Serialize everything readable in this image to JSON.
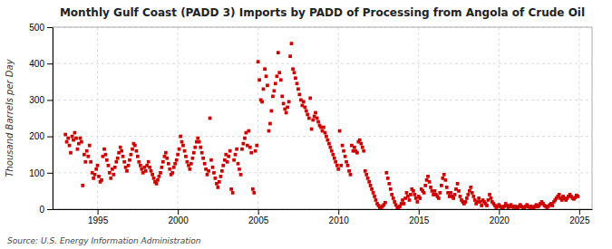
{
  "chart_data": {
    "type": "scatter",
    "title": "Monthly Gulf Coast (PADD 3) Imports by PADD of Processing from Angola of Crude Oil",
    "y_label": "Thousand Barrels per Day",
    "annotations": [
      "Source: U.S. Energy Information Administration"
    ],
    "color": "#cc0000",
    "marker": "square",
    "grid": true,
    "xlim": [
      1992.2,
      2025.8
    ],
    "ylim": [
      0,
      500
    ],
    "xticks": [
      1995,
      2000,
      2005,
      2010,
      2015,
      2020,
      2025
    ],
    "yticks": [
      0,
      100,
      200,
      300,
      400,
      500
    ],
    "x": [
      1993.0,
      1993.08,
      1993.17,
      1993.25,
      1993.33,
      1993.42,
      1993.5,
      1993.58,
      1993.67,
      1993.75,
      1993.83,
      1993.92,
      1994.0,
      1994.08,
      1994.17,
      1994.25,
      1994.33,
      1994.42,
      1994.5,
      1994.58,
      1994.67,
      1994.75,
      1994.83,
      1994.92,
      1995.0,
      1995.08,
      1995.17,
      1995.25,
      1995.33,
      1995.42,
      1995.5,
      1995.58,
      1995.67,
      1995.75,
      1995.83,
      1995.92,
      1996.0,
      1996.08,
      1996.17,
      1996.25,
      1996.33,
      1996.42,
      1996.5,
      1996.58,
      1996.67,
      1996.75,
      1996.83,
      1996.92,
      1997.0,
      1997.08,
      1997.17,
      1997.25,
      1997.33,
      1997.42,
      1997.5,
      1997.58,
      1997.67,
      1997.75,
      1997.83,
      1997.92,
      1998.0,
      1998.08,
      1998.17,
      1998.25,
      1998.33,
      1998.42,
      1998.5,
      1998.58,
      1998.67,
      1998.75,
      1998.83,
      1998.92,
      1999.0,
      1999.08,
      1999.17,
      1999.25,
      1999.33,
      1999.42,
      1999.5,
      1999.58,
      1999.67,
      1999.75,
      1999.83,
      1999.92,
      2000.0,
      2000.08,
      2000.17,
      2000.25,
      2000.33,
      2000.42,
      2000.5,
      2000.58,
      2000.67,
      2000.75,
      2000.83,
      2000.92,
      2001.0,
      2001.08,
      2001.17,
      2001.25,
      2001.33,
      2001.42,
      2001.5,
      2001.58,
      2001.67,
      2001.75,
      2001.83,
      2001.92,
      2002.0,
      2002.08,
      2002.17,
      2002.25,
      2002.33,
      2002.42,
      2002.5,
      2002.58,
      2002.67,
      2002.75,
      2002.83,
      2002.92,
      2003.0,
      2003.08,
      2003.17,
      2003.25,
      2003.33,
      2003.42,
      2003.5,
      2003.58,
      2003.67,
      2003.75,
      2003.83,
      2003.92,
      2004.0,
      2004.08,
      2004.17,
      2004.25,
      2004.33,
      2004.42,
      2004.5,
      2004.58,
      2004.67,
      2004.75,
      2004.83,
      2004.92,
      2005.0,
      2005.08,
      2005.17,
      2005.25,
      2005.33,
      2005.42,
      2005.5,
      2005.58,
      2005.67,
      2005.75,
      2005.83,
      2005.92,
      2006.0,
      2006.08,
      2006.17,
      2006.25,
      2006.33,
      2006.42,
      2006.5,
      2006.58,
      2006.67,
      2006.75,
      2006.83,
      2006.92,
      2007.0,
      2007.08,
      2007.17,
      2007.25,
      2007.33,
      2007.42,
      2007.5,
      2007.58,
      2007.67,
      2007.75,
      2007.83,
      2007.92,
      2008.0,
      2008.08,
      2008.17,
      2008.25,
      2008.33,
      2008.42,
      2008.5,
      2008.58,
      2008.67,
      2008.75,
      2008.83,
      2008.92,
      2009.0,
      2009.08,
      2009.17,
      2009.25,
      2009.33,
      2009.42,
      2009.5,
      2009.58,
      2009.67,
      2009.75,
      2009.83,
      2009.92,
      2010.0,
      2010.08,
      2010.17,
      2010.25,
      2010.33,
      2010.42,
      2010.5,
      2010.58,
      2010.67,
      2010.75,
      2010.83,
      2010.92,
      2011.0,
      2011.08,
      2011.17,
      2011.25,
      2011.33,
      2011.42,
      2011.5,
      2011.58,
      2011.67,
      2011.75,
      2011.83,
      2011.92,
      2012.0,
      2012.08,
      2012.17,
      2012.25,
      2012.33,
      2012.42,
      2012.5,
      2012.58,
      2012.67,
      2012.75,
      2012.83,
      2012.92,
      2013.0,
      2013.08,
      2013.17,
      2013.25,
      2013.33,
      2013.42,
      2013.5,
      2013.58,
      2013.67,
      2013.75,
      2013.83,
      2013.92,
      2014.0,
      2014.08,
      2014.17,
      2014.25,
      2014.33,
      2014.42,
      2014.5,
      2014.58,
      2014.67,
      2014.75,
      2014.83,
      2014.92,
      2015.0,
      2015.08,
      2015.17,
      2015.25,
      2015.33,
      2015.42,
      2015.5,
      2015.58,
      2015.67,
      2015.75,
      2015.83,
      2015.92,
      2016.0,
      2016.08,
      2016.17,
      2016.25,
      2016.33,
      2016.42,
      2016.5,
      2016.58,
      2016.67,
      2016.75,
      2016.83,
      2016.92,
      2017.0,
      2017.08,
      2017.17,
      2017.25,
      2017.33,
      2017.42,
      2017.5,
      2017.58,
      2017.67,
      2017.75,
      2017.83,
      2017.92,
      2018.0,
      2018.08,
      2018.17,
      2018.25,
      2018.33,
      2018.42,
      2018.5,
      2018.58,
      2018.67,
      2018.75,
      2018.83,
      2018.92,
      2019.0,
      2019.08,
      2019.17,
      2019.25,
      2019.33,
      2019.42,
      2019.5,
      2019.58,
      2019.67,
      2019.75,
      2019.83,
      2019.92,
      2020.0,
      2020.08,
      2020.17,
      2020.25,
      2020.33,
      2020.42,
      2020.5,
      2020.58,
      2020.67,
      2020.75,
      2020.83,
      2020.92,
      2021.0,
      2021.08,
      2021.17,
      2021.25,
      2021.33,
      2021.42,
      2021.5,
      2021.58,
      2021.67,
      2021.75,
      2021.83,
      2021.92,
      2022.0,
      2022.08,
      2022.17,
      2022.25,
      2022.33,
      2022.42,
      2022.5,
      2022.58,
      2022.67,
      2022.75,
      2022.83,
      2022.92,
      2023.0,
      2023.08,
      2023.17,
      2023.25,
      2023.33,
      2023.42,
      2023.5,
      2023.58,
      2023.67,
      2023.75,
      2023.83,
      2023.92,
      2024.0,
      2024.08,
      2024.17,
      2024.25,
      2024.33,
      2024.42,
      2024.5,
      2024.58,
      2024.67,
      2024.75,
      2024.83,
      2024.92
    ],
    "values": [
      205,
      185,
      195,
      175,
      155,
      200,
      190,
      210,
      195,
      165,
      180,
      195,
      185,
      65,
      150,
      130,
      160,
      145,
      175,
      130,
      100,
      85,
      95,
      110,
      120,
      90,
      75,
      80,
      145,
      165,
      150,
      135,
      120,
      100,
      85,
      110,
      95,
      115,
      130,
      140,
      155,
      170,
      160,
      145,
      130,
      115,
      105,
      120,
      135,
      150,
      165,
      180,
      175,
      160,
      145,
      130,
      120,
      110,
      100,
      115,
      105,
      120,
      130,
      115,
      105,
      95,
      85,
      75,
      70,
      80,
      90,
      100,
      115,
      130,
      145,
      155,
      140,
      125,
      110,
      95,
      100,
      115,
      125,
      135,
      150,
      165,
      200,
      185,
      175,
      160,
      145,
      130,
      120,
      110,
      125,
      140,
      155,
      170,
      185,
      195,
      185,
      170,
      155,
      140,
      125,
      110,
      95,
      105,
      250,
      135,
      115,
      100,
      85,
      70,
      60,
      75,
      90,
      105,
      120,
      135,
      150,
      130,
      145,
      160,
      55,
      45,
      135,
      150,
      165,
      125,
      110,
      95,
      165,
      180,
      195,
      210,
      175,
      215,
      170,
      155,
      55,
      45,
      160,
      175,
      405,
      355,
      300,
      295,
      330,
      385,
      365,
      340,
      215,
      235,
      270,
      310,
      325,
      345,
      365,
      430,
      375,
      355,
      310,
      290,
      275,
      265,
      280,
      295,
      420,
      455,
      385,
      375,
      360,
      345,
      330,
      315,
      300,
      285,
      295,
      280,
      270,
      260,
      250,
      305,
      220,
      245,
      255,
      265,
      250,
      240,
      230,
      225,
      215,
      225,
      210,
      200,
      190,
      180,
      170,
      160,
      150,
      140,
      130,
      120,
      110,
      215,
      120,
      175,
      160,
      145,
      130,
      120,
      105,
      95,
      175,
      160,
      170,
      160,
      155,
      185,
      190,
      180,
      170,
      160,
      105,
      95,
      85,
      75,
      65,
      55,
      45,
      35,
      25,
      15,
      10,
      5,
      3,
      8,
      12,
      18,
      100,
      85,
      70,
      55,
      40,
      30,
      20,
      12,
      5,
      3,
      8,
      15,
      25,
      15,
      30,
      45,
      35,
      25,
      40,
      55,
      50,
      40,
      30,
      20,
      35,
      30,
      55,
      50,
      45,
      65,
      80,
      90,
      75,
      60,
      50,
      40,
      50,
      40,
      35,
      30,
      45,
      65,
      85,
      95,
      80,
      60,
      45,
      35,
      45,
      35,
      30,
      40,
      55,
      70,
      50,
      35,
      25,
      20,
      15,
      20,
      30,
      40,
      50,
      60,
      45,
      35,
      25,
      15,
      20,
      30,
      20,
      10,
      25,
      20,
      15,
      10,
      25,
      40,
      30,
      20,
      15,
      10,
      5,
      8,
      12,
      8,
      5,
      3,
      8,
      15,
      10,
      5,
      8,
      12,
      7,
      5,
      8,
      5,
      3,
      8,
      12,
      7,
      5,
      3,
      8,
      12,
      7,
      5,
      8,
      5,
      3,
      8,
      12,
      7,
      10,
      15,
      20,
      15,
      10,
      8,
      5,
      8,
      12,
      15,
      10,
      20,
      25,
      30,
      35,
      40,
      30,
      25,
      35,
      30,
      25,
      30,
      35,
      40,
      35,
      30,
      28,
      32,
      38,
      35
    ]
  }
}
